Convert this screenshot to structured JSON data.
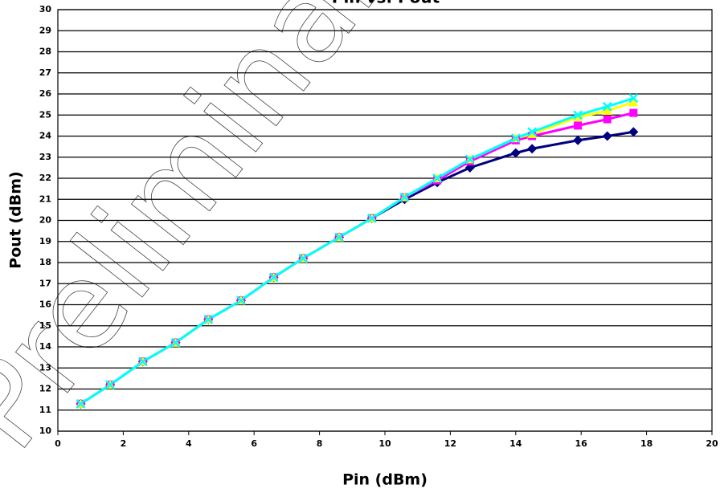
{
  "chart_data": {
    "type": "line",
    "title": "Pin vs. Pout",
    "watermark": "Preliminary",
    "x_label": "Pin (dBm)",
    "y_label": "Pout (dBm)",
    "x": [
      0.7,
      1.6,
      2.6,
      3.6,
      4.6,
      5.6,
      6.6,
      7.5,
      8.6,
      9.6,
      10.6,
      11.6,
      12.6,
      14.0,
      14.5,
      15.9,
      16.8,
      17.6
    ],
    "series": [
      {
        "color": "#000080",
        "marker": "diamond",
        "values": [
          11.3,
          12.2,
          13.3,
          14.2,
          15.3,
          16.2,
          17.3,
          18.2,
          19.2,
          20.1,
          21.0,
          21.8,
          22.5,
          23.2,
          23.4,
          23.8,
          24.0,
          24.2
        ]
      },
      {
        "color": "#ff00ff",
        "marker": "square",
        "values": [
          11.3,
          12.2,
          13.3,
          14.2,
          15.3,
          16.2,
          17.3,
          18.2,
          19.2,
          20.1,
          21.1,
          21.9,
          22.8,
          23.8,
          24.0,
          24.5,
          24.8,
          25.1
        ]
      },
      {
        "color": "#ffff00",
        "marker": "triangle",
        "values": [
          11.3,
          12.2,
          13.3,
          14.2,
          15.3,
          16.2,
          17.3,
          18.2,
          19.2,
          20.1,
          21.1,
          22.0,
          22.9,
          23.9,
          24.1,
          24.9,
          25.2,
          25.6
        ]
      },
      {
        "color": "#00ffff",
        "marker": "x",
        "values": [
          11.3,
          12.2,
          13.3,
          14.2,
          15.3,
          16.2,
          17.3,
          18.2,
          19.2,
          20.1,
          21.1,
          22.0,
          22.9,
          23.9,
          24.2,
          25.0,
          25.4,
          25.8
        ]
      }
    ],
    "xlim": [
      0,
      20
    ],
    "xticks": [
      0,
      2,
      4,
      6,
      8,
      10,
      12,
      14,
      16,
      18,
      20
    ],
    "ylim": [
      10,
      30
    ],
    "yticks": [
      10,
      11,
      12,
      13,
      14,
      15,
      16,
      17,
      18,
      19,
      20,
      21,
      22,
      23,
      24,
      25,
      26,
      27,
      28,
      29,
      30
    ],
    "grid": true
  }
}
